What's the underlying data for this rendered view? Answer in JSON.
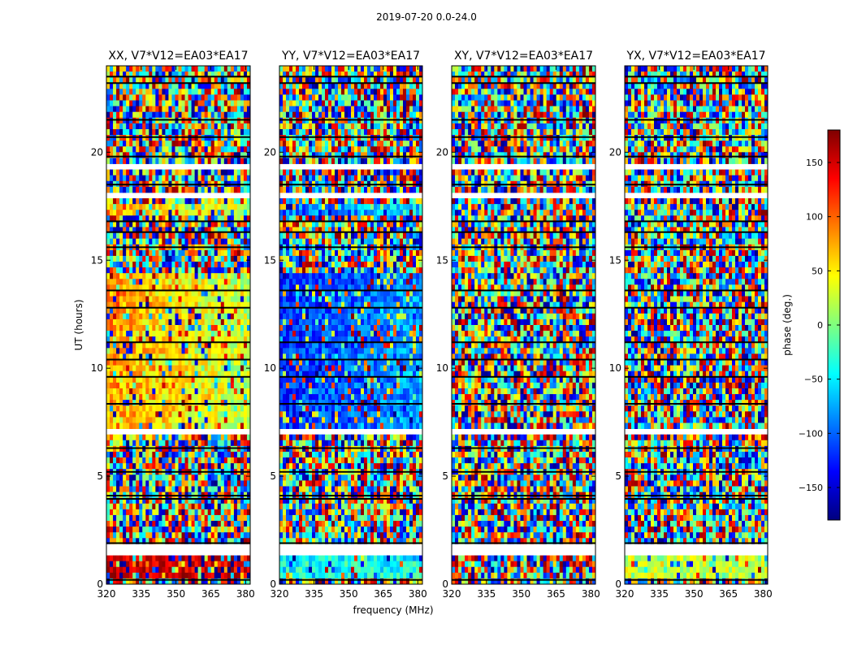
{
  "figure": {
    "suptitle": "2019-07-20 0.0-24.0"
  },
  "chart_data": [
    {
      "type": "heatmap",
      "title": "XX, V7*V12=EA03*EA17",
      "xlabel": "",
      "ylabel": "UT (hours)",
      "xlim": [
        320,
        382
      ],
      "ylim": [
        0,
        24
      ],
      "xticks": [
        320,
        335,
        350,
        365,
        380
      ],
      "yticks": [
        0,
        5,
        10,
        15,
        20
      ],
      "xtick_labels": [
        "320",
        "335",
        "350",
        "365",
        "380"
      ],
      "ytick_labels": [
        "0",
        "5",
        "10",
        "15",
        "20"
      ],
      "dominant_phase_by_time": [
        {
          "from": 0.3,
          "to": 1.4,
          "phase_low_freq": 160,
          "phase_high_freq": 150
        },
        {
          "from": 7.0,
          "to": 14.5,
          "phase_low_freq": 80,
          "phase_high_freq": 20
        },
        {
          "from": 17.0,
          "to": 17.5,
          "phase_low_freq": 80,
          "phase_high_freq": 20
        }
      ]
    },
    {
      "type": "heatmap",
      "title": "YY, V7*V12=EA03*EA17",
      "xlabel": "frequency (MHz)",
      "ylabel": "",
      "xlim": [
        320,
        382
      ],
      "ylim": [
        0,
        24
      ],
      "xticks": [
        320,
        335,
        350,
        365,
        380
      ],
      "yticks": [
        0,
        5,
        10,
        15,
        20
      ],
      "xtick_labels": [
        "320",
        "335",
        "350",
        "365",
        "380"
      ],
      "ytick_labels": [
        "0",
        "5",
        "10",
        "15",
        "20"
      ],
      "dominant_phase_by_time": [
        {
          "from": 0.3,
          "to": 1.4,
          "phase_low_freq": -40,
          "phase_high_freq": -40
        },
        {
          "from": 7.0,
          "to": 14.5,
          "phase_low_freq": -120,
          "phase_high_freq": -80
        },
        {
          "from": 17.0,
          "to": 17.5,
          "phase_low_freq": -100,
          "phase_high_freq": -60
        }
      ]
    },
    {
      "type": "heatmap",
      "title": "XY, V7*V12=EA03*EA17",
      "xlabel": "",
      "ylabel": "",
      "xlim": [
        320,
        382
      ],
      "ylim": [
        0,
        24
      ],
      "xticks": [
        320,
        335,
        350,
        365,
        380
      ],
      "yticks": [
        0,
        5,
        10,
        15,
        20
      ],
      "xtick_labels": [
        "320",
        "335",
        "350",
        "365",
        "380"
      ],
      "ytick_labels": [
        "0",
        "5",
        "10",
        "15",
        "20"
      ],
      "dominant_phase_by_time": []
    },
    {
      "type": "heatmap",
      "title": "YX, V7*V12=EA03*EA17",
      "xlabel": "",
      "ylabel": "",
      "xlim": [
        320,
        382
      ],
      "ylim": [
        0,
        24
      ],
      "xticks": [
        320,
        335,
        350,
        365,
        380
      ],
      "yticks": [
        0,
        5,
        10,
        15,
        20
      ],
      "xtick_labels": [
        "320",
        "335",
        "350",
        "365",
        "380"
      ],
      "ytick_labels": [
        "0",
        "5",
        "10",
        "15",
        "20"
      ],
      "dominant_phase_by_time": [
        {
          "from": 0.3,
          "to": 1.4,
          "phase_low_freq": 20,
          "phase_high_freq": 20
        }
      ]
    }
  ],
  "colorbar": {
    "label": "phase (deg.)",
    "range": [
      -180,
      180
    ],
    "ticks": [
      150,
      100,
      50,
      0,
      -50,
      -100,
      -150
    ],
    "tick_labels": [
      "150",
      "100",
      "50",
      "0",
      "−50",
      "−100",
      "−150"
    ],
    "colormap": [
      "#00007f",
      "#0000ff",
      "#007fff",
      "#00ffff",
      "#7fff7f",
      "#ffff00",
      "#ff7f00",
      "#ff0000",
      "#7f0000"
    ]
  },
  "flagged_time_bands": [
    [
      1.4,
      1.75
    ],
    [
      6.05,
      6.25
    ],
    [
      7.05,
      7.3
    ],
    [
      17.8,
      18.1
    ],
    [
      19.3,
      19.5
    ],
    [
      22.3,
      22.5
    ]
  ],
  "dark_time_lines": [
    0.2,
    1.9,
    3.95,
    4.1,
    5.2,
    6.3,
    8.35,
    9.6,
    10.4,
    11.2,
    12.8,
    13.6,
    15.6,
    16.3,
    16.8,
    18.5,
    19.8,
    20.7,
    21.5,
    23.2,
    23.5
  ]
}
